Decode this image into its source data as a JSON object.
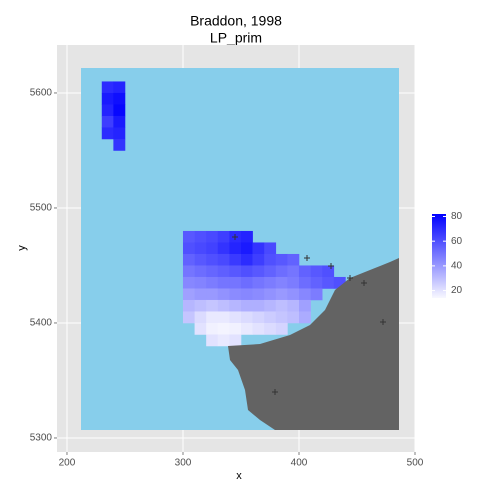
{
  "chart_data": {
    "type": "raster",
    "title": "Braddon, 1998",
    "subtitle": "LP_prim",
    "x_label": "x",
    "y_label": "y",
    "xlim": [
      191.4,
      500
    ],
    "ylim": [
      5287.8,
      5641.7
    ],
    "xticks": [
      200,
      300,
      400,
      500
    ],
    "yticks": [
      5300,
      5400,
      5500,
      5600
    ],
    "grid": true,
    "zlim": [
      14,
      82
    ],
    "zticks": [
      20,
      40,
      60,
      80
    ],
    "low_color": "#f8f8ff",
    "high_color": "#0000ff",
    "legend_position": "right",
    "patches": [
      {
        "x": [
          305,
          315,
          325,
          335,
          345,
          355,
          365,
          375,
          385,
          395,
          405,
          415,
          425,
          435,
          445
        ],
        "y": [
          5475,
          5465,
          5455,
          5445,
          5435,
          5425,
          5415,
          5405,
          5395,
          5385
        ],
        "values": [
          [
            58,
            60,
            62,
            65,
            70,
            72,
            null,
            null,
            null,
            null,
            null,
            null,
            null,
            null,
            null
          ],
          [
            60,
            62,
            64,
            68,
            72,
            75,
            68,
            62,
            null,
            null,
            null,
            null,
            null,
            null,
            null
          ],
          [
            55,
            58,
            60,
            62,
            66,
            70,
            65,
            60,
            58,
            55,
            null,
            null,
            null,
            null,
            null
          ],
          [
            50,
            52,
            54,
            56,
            58,
            60,
            58,
            55,
            52,
            50,
            55,
            58,
            60,
            null,
            null
          ],
          [
            45,
            46,
            48,
            50,
            50,
            52,
            50,
            48,
            46,
            48,
            52,
            55,
            58,
            60,
            null
          ],
          [
            38,
            40,
            40,
            42,
            44,
            45,
            44,
            42,
            40,
            42,
            45,
            48,
            null,
            null,
            null
          ],
          [
            32,
            30,
            28,
            30,
            32,
            34,
            34,
            32,
            30,
            32,
            38,
            null,
            null,
            null,
            null
          ],
          [
            28,
            22,
            18,
            18,
            20,
            22,
            24,
            26,
            28,
            30,
            35,
            null,
            null,
            null,
            null
          ],
          [
            null,
            20,
            16,
            15,
            16,
            18,
            20,
            22,
            24,
            null,
            null,
            null,
            null,
            null,
            null
          ],
          [
            null,
            null,
            20,
            18,
            20,
            null,
            null,
            null,
            null,
            null,
            null,
            null,
            null,
            null,
            null
          ]
        ]
      },
      {
        "x": [
          235,
          245
        ],
        "y": [
          5605,
          5595,
          5585,
          5575,
          5565,
          5555
        ],
        "values": [
          [
            70,
            72
          ],
          [
            75,
            78
          ],
          [
            72,
            80
          ],
          [
            65,
            75
          ],
          [
            70,
            72
          ],
          [
            null,
            68
          ]
        ]
      }
    ]
  }
}
